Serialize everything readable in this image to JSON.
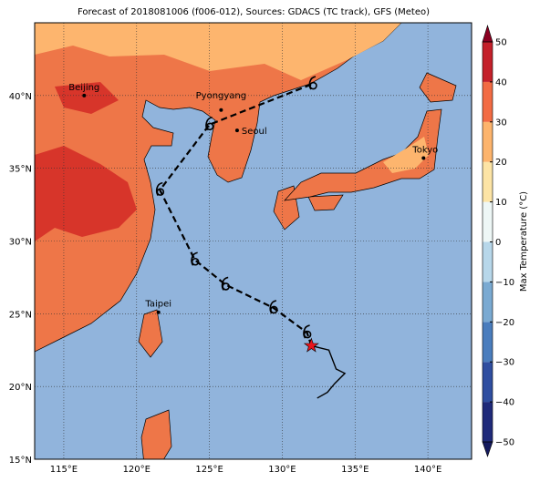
{
  "map": {
    "title": "Forecast of 2018081006 (f006-012), Sources: GDACS (TC track), GFS (Meteo)",
    "lonlim": [
      113,
      143
    ],
    "latlim": [
      15,
      45
    ],
    "lonticks": [
      {
        "value": 115,
        "label": "115°E"
      },
      {
        "value": 120,
        "label": "120°E"
      },
      {
        "value": 125,
        "label": "125°E"
      },
      {
        "value": 130,
        "label": "130°E"
      },
      {
        "value": 135,
        "label": "135°E"
      },
      {
        "value": 140,
        "label": "140°E"
      }
    ],
    "latticks": [
      {
        "value": 15,
        "label": "15°N"
      },
      {
        "value": 20,
        "label": "20°N"
      },
      {
        "value": 25,
        "label": "25°N"
      },
      {
        "value": 30,
        "label": "30°N"
      },
      {
        "value": 35,
        "label": "35°N"
      },
      {
        "value": 40,
        "label": "40°N"
      }
    ],
    "grid": true,
    "cities": [
      {
        "name": "Beijing",
        "lon": 116.4,
        "lat": 40.0
      },
      {
        "name": "Pyongyang",
        "lon": 125.8,
        "lat": 39.0
      },
      {
        "name": "Seoul",
        "lon": 126.9,
        "lat": 37.6
      },
      {
        "name": "Tokyo",
        "lon": 139.7,
        "lat": 35.7
      },
      {
        "name": "Taipei",
        "lon": 121.5,
        "lat": 25.1
      }
    ],
    "forecast_track": {
      "color": "#000000",
      "lon": [
        132.0,
        131.7,
        129.4,
        126.1,
        124.0,
        121.6,
        125.0,
        132.1
      ],
      "lat": [
        22.8,
        23.7,
        25.4,
        27.0,
        28.7,
        33.5,
        38.0,
        40.8
      ]
    },
    "past_track": {
      "color": "#000000",
      "lon": [
        132.0,
        133.2,
        133.7,
        134.3,
        133.6,
        133.1,
        132.4
      ],
      "lat": [
        22.8,
        22.5,
        21.2,
        20.9,
        20.2,
        19.6,
        19.2
      ]
    },
    "current_position": {
      "lon": 132.0,
      "lat": 22.8,
      "color": "#e8141c"
    },
    "colorbar": {
      "label": "Max Temperature (°C)",
      "lim": [
        -50,
        50
      ],
      "ticks": [
        {
          "value": -50,
          "label": "−50"
        },
        {
          "value": -40,
          "label": "−40"
        },
        {
          "value": -30,
          "label": "−30"
        },
        {
          "value": -20,
          "label": "−20"
        },
        {
          "value": -10,
          "label": "−10"
        },
        0,
        10,
        20,
        30,
        40,
        50
      ],
      "colors": [
        "#1f2a7a",
        "#2f4ea0",
        "#4a7dbd",
        "#7aaad2",
        "#b7d7ea",
        "#eef7f6",
        "#fde4a5",
        "#fdb46c",
        "#f26b43",
        "#c4202a"
      ],
      "extend_colors": [
        "#141a5e",
        "#8b0021"
      ]
    }
  }
}
